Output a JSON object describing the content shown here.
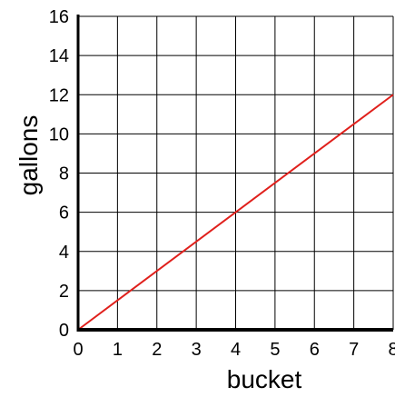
{
  "chart_data": {
    "type": "line",
    "title": "",
    "xlabel": "bucket",
    "ylabel": "gallons",
    "xlim": [
      0,
      8
    ],
    "ylim": [
      0,
      16
    ],
    "x_ticks": [
      "0",
      "1",
      "2",
      "3",
      "4",
      "5",
      "6",
      "7",
      "8"
    ],
    "y_ticks": [
      "0",
      "2",
      "4",
      "6",
      "8",
      "10",
      "12",
      "14",
      "16"
    ],
    "grid": true,
    "legend": "none",
    "series": [
      {
        "x": [
          0,
          8
        ],
        "y": [
          0,
          12
        ],
        "color": "#e0201c"
      }
    ]
  }
}
